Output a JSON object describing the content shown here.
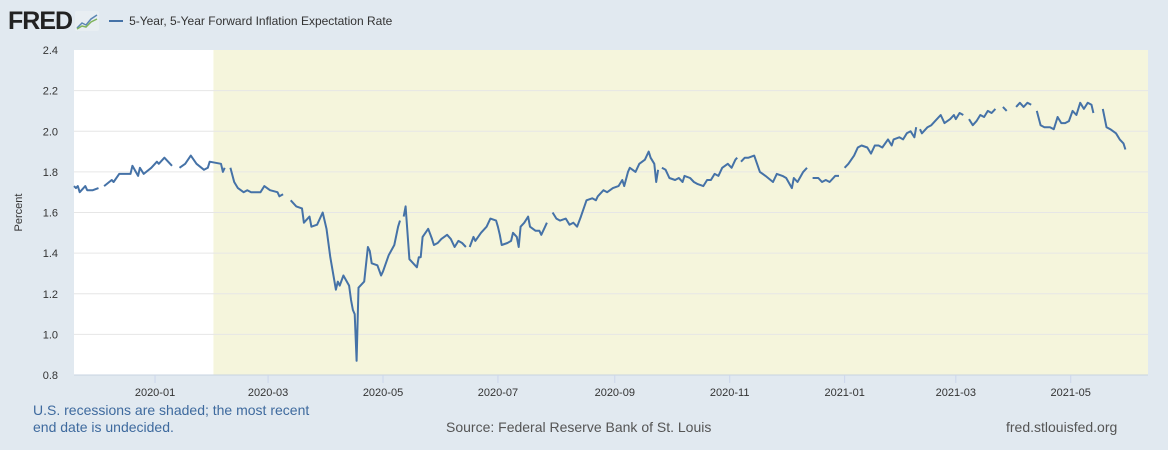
{
  "header": {
    "logo_text": "FRED",
    "logo_icon": "line-chart-icon",
    "legend_color": "#4572a7"
  },
  "footer": {
    "note": "U.S. recessions are shaded; the most recent end date is undecided.",
    "source": "Source: Federal Reserve Bank of St. Louis",
    "site": "fred.stlouisfed.org"
  },
  "colors": {
    "background": "#e1e9f0",
    "plot": "#ffffff",
    "recession": "#f5f5dc",
    "line": "#4572a7",
    "grid": "#e6e6e6"
  },
  "chart_data": {
    "type": "line",
    "title": "",
    "xlabel": "",
    "ylabel": "Percent",
    "ylim": [
      0.8,
      2.4
    ],
    "yticks": [
      "0.8",
      "1.0",
      "1.2",
      "1.4",
      "1.6",
      "1.8",
      "2.0",
      "2.2",
      "2.4"
    ],
    "xlim": [
      "2019-11-19",
      "2021-06-11"
    ],
    "xticks": [
      "2020-01",
      "2020-03",
      "2020-05",
      "2020-07",
      "2020-09",
      "2020-11",
      "2021-01",
      "2021-03",
      "2021-05"
    ],
    "grid": true,
    "legend_position": "top-left",
    "recessions": [
      {
        "start": "2020-02-01",
        "end": "2021-06-11"
      }
    ],
    "series": [
      {
        "name": "5-Year, 5-Year Forward Inflation Expectation Rate",
        "points": [
          [
            "2019-11-19",
            1.73
          ],
          [
            "2019-11-20",
            1.72
          ],
          [
            "2019-11-21",
            1.73
          ],
          [
            "2019-11-22",
            1.7
          ],
          [
            "2019-11-25",
            1.73
          ],
          [
            "2019-11-26",
            1.71
          ],
          [
            "2019-11-29",
            1.71
          ],
          [
            "2019-12-02",
            1.72
          ],
          null,
          [
            "2019-12-05",
            1.73
          ],
          [
            "2019-12-09",
            1.76
          ],
          [
            "2019-12-10",
            1.75
          ],
          [
            "2019-12-13",
            1.79
          ],
          [
            "2019-12-19",
            1.79
          ],
          [
            "2019-12-20",
            1.83
          ],
          [
            "2019-12-23",
            1.78
          ],
          [
            "2019-12-24",
            1.82
          ],
          [
            "2019-12-26",
            1.79
          ],
          [
            "2019-12-30",
            1.82
          ],
          [
            "2020-01-02",
            1.85
          ],
          [
            "2020-01-03",
            1.84
          ],
          [
            "2020-01-06",
            1.87
          ],
          [
            "2020-01-10",
            1.83
          ],
          null,
          [
            "2020-01-14",
            1.82
          ],
          [
            "2020-01-17",
            1.84
          ],
          [
            "2020-01-20",
            1.88
          ],
          [
            "2020-01-23",
            1.84
          ],
          [
            "2020-01-27",
            1.81
          ],
          [
            "2020-01-29",
            1.82
          ],
          [
            "2020-01-30",
            1.85
          ],
          [
            "2020-02-05",
            1.84
          ],
          [
            "2020-02-06",
            1.8
          ],
          [
            "2020-02-07",
            1.82
          ],
          null,
          [
            "2020-02-10",
            1.82
          ],
          [
            "2020-02-12",
            1.75
          ],
          [
            "2020-02-14",
            1.72
          ],
          [
            "2020-02-17",
            1.7
          ],
          [
            "2020-02-19",
            1.71
          ],
          [
            "2020-02-21",
            1.7
          ],
          [
            "2020-02-26",
            1.7
          ],
          [
            "2020-02-28",
            1.73
          ],
          [
            "2020-03-02",
            1.71
          ],
          [
            "2020-03-06",
            1.7
          ],
          [
            "2020-03-07",
            1.68
          ],
          [
            "2020-03-09",
            1.69
          ],
          null,
          [
            "2020-03-13",
            1.66
          ],
          [
            "2020-03-16",
            1.63
          ],
          [
            "2020-03-19",
            1.62
          ],
          [
            "2020-03-20",
            1.55
          ],
          [
            "2020-03-23",
            1.58
          ],
          [
            "2020-03-24",
            1.53
          ],
          [
            "2020-03-27",
            1.54
          ],
          [
            "2020-03-30",
            1.6
          ],
          [
            "2020-04-01",
            1.52
          ],
          [
            "2020-04-03",
            1.38
          ],
          [
            "2020-04-06",
            1.22
          ],
          [
            "2020-04-07",
            1.26
          ],
          [
            "2020-04-08",
            1.24
          ],
          [
            "2020-04-10",
            1.29
          ],
          [
            "2020-04-13",
            1.24
          ],
          [
            "2020-04-14",
            1.17
          ],
          [
            "2020-04-15",
            1.12
          ],
          [
            "2020-04-16",
            1.1
          ],
          [
            "2020-04-17",
            0.87
          ],
          [
            "2020-04-18",
            1.23
          ],
          [
            "2020-04-21",
            1.26
          ],
          [
            "2020-04-23",
            1.43
          ],
          [
            "2020-04-24",
            1.41
          ],
          [
            "2020-04-25",
            1.35
          ],
          [
            "2020-04-28",
            1.34
          ],
          [
            "2020-04-30",
            1.29
          ],
          [
            "2020-05-01",
            1.31
          ],
          [
            "2020-05-04",
            1.39
          ],
          [
            "2020-05-07",
            1.44
          ],
          [
            "2020-05-09",
            1.53
          ],
          [
            "2020-05-10",
            1.56
          ],
          null,
          [
            "2020-05-12",
            1.58
          ],
          [
            "2020-05-13",
            1.63
          ],
          [
            "2020-05-15",
            1.37
          ],
          [
            "2020-05-19",
            1.33
          ],
          [
            "2020-05-20",
            1.38
          ],
          [
            "2020-05-21",
            1.38
          ],
          [
            "2020-05-22",
            1.48
          ],
          [
            "2020-05-25",
            1.52
          ],
          [
            "2020-05-27",
            1.47
          ],
          [
            "2020-05-28",
            1.44
          ],
          [
            "2020-05-30",
            1.45
          ],
          [
            "2020-06-01",
            1.47
          ],
          [
            "2020-06-04",
            1.49
          ],
          [
            "2020-06-06",
            1.47
          ],
          [
            "2020-06-08",
            1.43
          ],
          [
            "2020-06-10",
            1.46
          ],
          [
            "2020-06-12",
            1.45
          ],
          [
            "2020-06-14",
            1.43
          ],
          null,
          [
            "2020-06-16",
            1.43
          ],
          [
            "2020-06-18",
            1.48
          ],
          [
            "2020-06-19",
            1.46
          ],
          [
            "2020-06-22",
            1.5
          ],
          [
            "2020-06-25",
            1.53
          ],
          [
            "2020-06-27",
            1.57
          ],
          [
            "2020-06-30",
            1.56
          ],
          [
            "2020-07-01",
            1.53
          ],
          [
            "2020-07-02",
            1.49
          ],
          [
            "2020-07-03",
            1.44
          ],
          [
            "2020-07-06",
            1.45
          ],
          [
            "2020-07-08",
            1.46
          ],
          [
            "2020-07-09",
            1.5
          ],
          [
            "2020-07-11",
            1.48
          ],
          [
            "2020-07-12",
            1.43
          ],
          [
            "2020-07-13",
            1.53
          ],
          [
            "2020-07-15",
            1.55
          ],
          [
            "2020-07-17",
            1.58
          ],
          [
            "2020-07-18",
            1.53
          ],
          [
            "2020-07-21",
            1.51
          ],
          [
            "2020-07-23",
            1.51
          ],
          [
            "2020-07-24",
            1.49
          ],
          [
            "2020-07-26",
            1.53
          ],
          [
            "2020-07-27",
            1.55
          ],
          null,
          [
            "2020-07-30",
            1.6
          ],
          [
            "2020-08-01",
            1.57
          ],
          [
            "2020-08-03",
            1.56
          ],
          [
            "2020-08-06",
            1.57
          ],
          [
            "2020-08-08",
            1.54
          ],
          [
            "2020-08-10",
            1.55
          ],
          [
            "2020-08-12",
            1.53
          ],
          [
            "2020-08-14",
            1.58
          ],
          [
            "2020-08-17",
            1.66
          ],
          [
            "2020-08-20",
            1.67
          ],
          [
            "2020-08-22",
            1.66
          ],
          [
            "2020-08-23",
            1.68
          ],
          [
            "2020-08-26",
            1.71
          ],
          [
            "2020-08-28",
            1.7
          ],
          [
            "2020-08-31",
            1.72
          ],
          [
            "2020-09-03",
            1.73
          ],
          [
            "2020-09-05",
            1.76
          ],
          [
            "2020-09-06",
            1.73
          ],
          [
            "2020-09-08",
            1.8
          ],
          [
            "2020-09-09",
            1.82
          ],
          [
            "2020-09-12",
            1.8
          ],
          [
            "2020-09-14",
            1.84
          ],
          [
            "2020-09-17",
            1.86
          ],
          [
            "2020-09-19",
            1.9
          ],
          [
            "2020-09-20",
            1.87
          ],
          [
            "2020-09-22",
            1.84
          ],
          [
            "2020-09-23",
            1.75
          ],
          [
            "2020-09-24",
            1.81
          ],
          null,
          [
            "2020-09-26",
            1.82
          ],
          [
            "2020-09-28",
            1.81
          ],
          [
            "2020-09-30",
            1.77
          ],
          [
            "2020-10-03",
            1.76
          ],
          [
            "2020-10-05",
            1.77
          ],
          [
            "2020-10-07",
            1.75
          ],
          [
            "2020-10-08",
            1.78
          ],
          [
            "2020-10-11",
            1.77
          ],
          [
            "2020-10-13",
            1.75
          ],
          [
            "2020-10-15",
            1.74
          ],
          [
            "2020-10-18",
            1.73
          ],
          [
            "2020-10-20",
            1.76
          ],
          [
            "2020-10-22",
            1.76
          ],
          [
            "2020-10-24",
            1.79
          ],
          [
            "2020-10-26",
            1.78
          ],
          [
            "2020-10-28",
            1.82
          ],
          [
            "2020-10-31",
            1.84
          ],
          [
            "2020-11-02",
            1.82
          ],
          [
            "2020-11-04",
            1.86
          ],
          [
            "2020-11-05",
            1.87
          ],
          null,
          [
            "2020-11-07",
            1.85
          ],
          [
            "2020-11-09",
            1.87
          ],
          [
            "2020-11-11",
            1.87
          ],
          [
            "2020-11-14",
            1.88
          ],
          [
            "2020-11-17",
            1.8
          ],
          [
            "2020-11-20",
            1.78
          ],
          [
            "2020-11-24",
            1.75
          ],
          [
            "2020-11-26",
            1.79
          ],
          [
            "2020-11-29",
            1.78
          ],
          [
            "2020-12-01",
            1.77
          ],
          [
            "2020-12-04",
            1.72
          ],
          [
            "2020-12-05",
            1.77
          ],
          [
            "2020-12-07",
            1.75
          ],
          [
            "2020-12-10",
            1.8
          ],
          [
            "2020-12-12",
            1.82
          ],
          null,
          [
            "2020-12-15",
            1.77
          ],
          [
            "2020-12-18",
            1.77
          ],
          [
            "2020-12-20",
            1.75
          ],
          [
            "2020-12-22",
            1.76
          ],
          [
            "2020-12-24",
            1.75
          ],
          [
            "2020-12-27",
            1.78
          ],
          [
            "2020-12-29",
            1.78
          ],
          null,
          [
            "2021-01-01",
            1.82
          ],
          [
            "2021-01-03",
            1.84
          ],
          [
            "2021-01-06",
            1.88
          ],
          [
            "2021-01-08",
            1.92
          ],
          [
            "2021-01-10",
            1.93
          ],
          [
            "2021-01-13",
            1.92
          ],
          [
            "2021-01-15",
            1.89
          ],
          [
            "2021-01-17",
            1.93
          ],
          [
            "2021-01-19",
            1.93
          ],
          [
            "2021-01-21",
            1.92
          ],
          [
            "2021-01-24",
            1.96
          ],
          [
            "2021-01-26",
            1.93
          ],
          [
            "2021-01-27",
            1.96
          ],
          [
            "2021-01-30",
            1.97
          ],
          [
            "2021-02-01",
            1.96
          ],
          [
            "2021-02-03",
            1.99
          ],
          [
            "2021-02-05",
            2.0
          ],
          [
            "2021-02-07",
            1.97
          ],
          [
            "2021-02-08",
            2.02
          ],
          null,
          [
            "2021-02-10",
            2.01
          ],
          [
            "2021-02-11",
            1.99
          ],
          [
            "2021-02-14",
            2.02
          ],
          [
            "2021-02-16",
            2.03
          ],
          [
            "2021-02-18",
            2.05
          ],
          [
            "2021-02-21",
            2.08
          ],
          [
            "2021-02-23",
            2.04
          ],
          [
            "2021-02-26",
            2.06
          ],
          [
            "2021-02-28",
            2.08
          ],
          [
            "2021-03-01",
            2.06
          ],
          [
            "2021-03-03",
            2.09
          ],
          [
            "2021-03-05",
            2.08
          ],
          null,
          [
            "2021-03-08",
            2.06
          ],
          [
            "2021-03-10",
            2.03
          ],
          [
            "2021-03-12",
            2.05
          ],
          [
            "2021-03-14",
            2.08
          ],
          [
            "2021-03-16",
            2.07
          ],
          [
            "2021-03-18",
            2.1
          ],
          [
            "2021-03-20",
            2.09
          ],
          [
            "2021-03-22",
            2.11
          ],
          null,
          [
            "2021-03-26",
            2.12
          ],
          [
            "2021-03-28",
            2.1
          ],
          null,
          [
            "2021-04-02",
            2.12
          ],
          [
            "2021-04-04",
            2.14
          ],
          [
            "2021-04-06",
            2.12
          ],
          [
            "2021-04-08",
            2.14
          ],
          [
            "2021-04-10",
            2.13
          ],
          null,
          [
            "2021-04-13",
            2.1
          ],
          [
            "2021-04-15",
            2.03
          ],
          [
            "2021-04-17",
            2.02
          ],
          [
            "2021-04-20",
            2.02
          ],
          [
            "2021-04-22",
            2.01
          ],
          [
            "2021-04-24",
            2.07
          ],
          [
            "2021-04-26",
            2.04
          ],
          [
            "2021-04-28",
            2.04
          ],
          [
            "2021-04-30",
            2.05
          ],
          [
            "2021-05-02",
            2.1
          ],
          [
            "2021-05-04",
            2.08
          ],
          [
            "2021-05-06",
            2.14
          ],
          [
            "2021-05-08",
            2.11
          ],
          [
            "2021-05-10",
            2.14
          ],
          [
            "2021-05-12",
            2.13
          ],
          [
            "2021-05-13",
            2.09
          ],
          null,
          [
            "2021-05-18",
            2.11
          ],
          [
            "2021-05-20",
            2.02
          ],
          [
            "2021-05-22",
            2.01
          ],
          [
            "2021-05-25",
            1.99
          ],
          [
            "2021-05-27",
            1.96
          ],
          [
            "2021-05-29",
            1.94
          ],
          [
            "2021-05-30",
            1.91
          ]
        ]
      }
    ]
  }
}
